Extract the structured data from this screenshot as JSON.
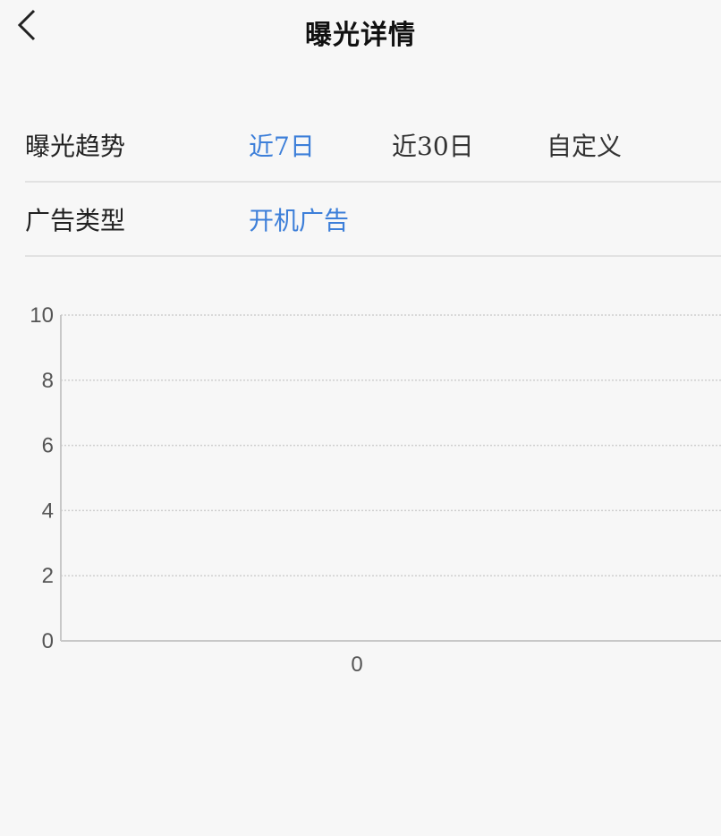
{
  "header": {
    "title": "曝光详情",
    "back_icon": "chevron-left-icon"
  },
  "filters": {
    "trend": {
      "label": "曝光趋势",
      "options": [
        "近7日",
        "近30日",
        "自定义"
      ],
      "selected": "近7日"
    },
    "ad_type": {
      "label": "广告类型",
      "value": "开机广告"
    }
  },
  "colors": {
    "accent": "#3d7fd9",
    "grid": "#cfcfcf",
    "axis": "#c8c8c8"
  },
  "chart_data": {
    "type": "line",
    "x": [
      "0"
    ],
    "series": [
      {
        "values": [
          0
        ]
      }
    ],
    "ylim": [
      0,
      10
    ],
    "y_ticks": [
      "0",
      "2",
      "4",
      "6",
      "8",
      "10"
    ],
    "x_ticks": [
      "0"
    ],
    "grid": true
  }
}
